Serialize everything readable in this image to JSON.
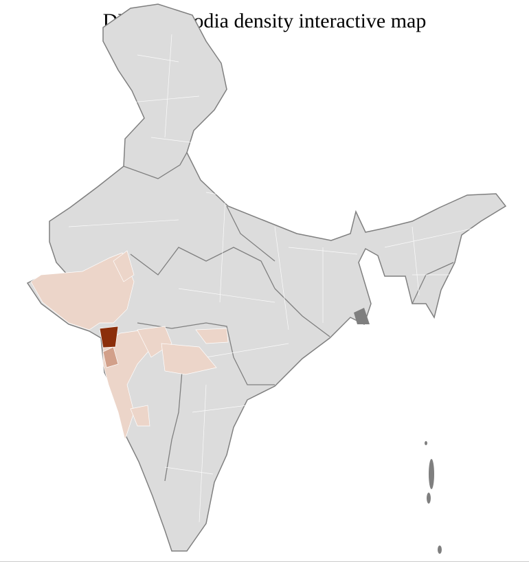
{
  "title": "DNA F Dhodia density interactive map",
  "colors": {
    "base": "#dcdcdc",
    "district_border": "#ffffff",
    "state_border": "#7f7f7f",
    "density_low": "#ecd5c9",
    "density_medium": "#d2a08a",
    "density_high": "#8b2e0a"
  }
}
